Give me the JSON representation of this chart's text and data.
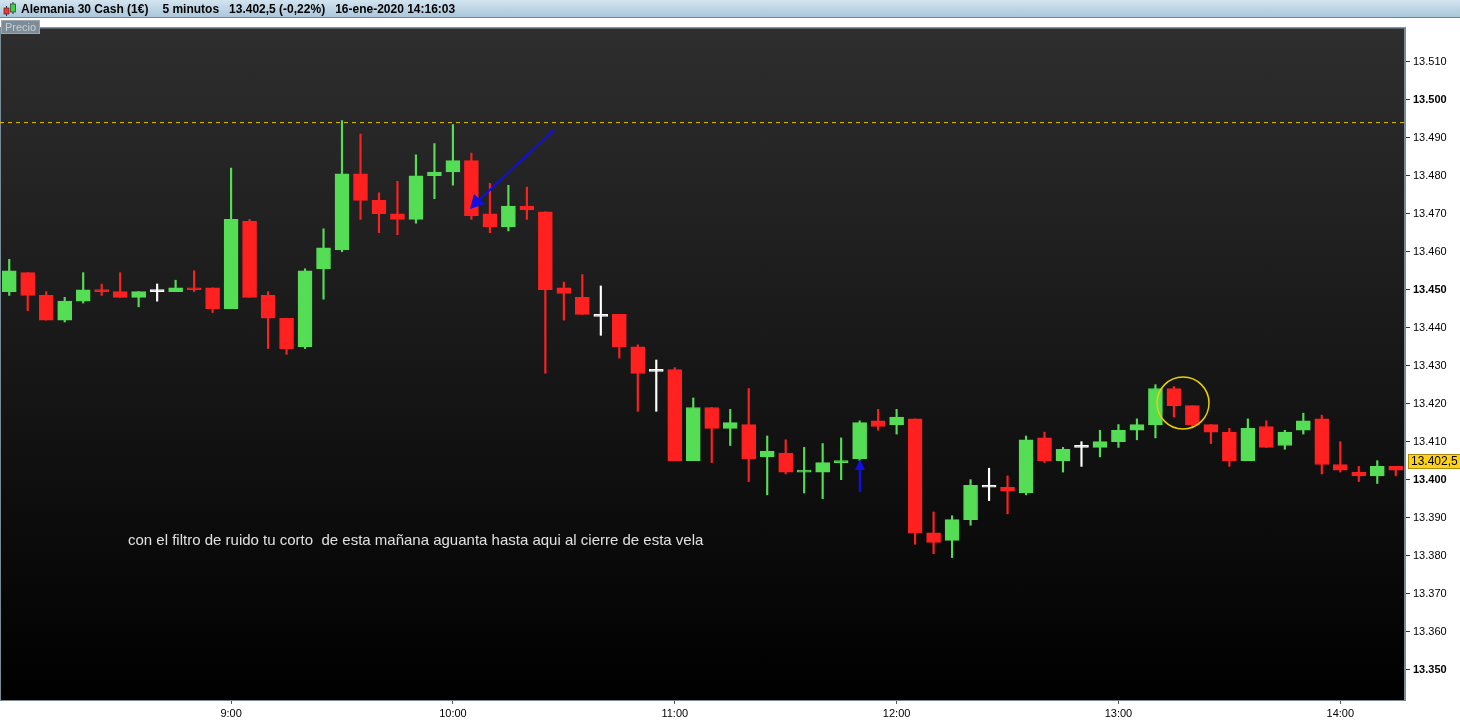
{
  "chart_data": {
    "type": "candlestick",
    "title": "Alemania 30 Cash (1€)",
    "subtitle": "5 minutos   13.402,5 (-0,22%)   16-ene-2020 14:16:03",
    "categories": [
      null,
      null,
      null,
      null,
      null,
      null,
      null,
      null,
      null,
      null,
      null,
      null,
      "9:00",
      null,
      null,
      null,
      null,
      null,
      null,
      null,
      null,
      null,
      null,
      null,
      "10:00",
      null,
      null,
      null,
      null,
      null,
      null,
      null,
      null,
      null,
      null,
      null,
      "11:00",
      null,
      null,
      null,
      null,
      null,
      null,
      null,
      null,
      null,
      null,
      null,
      "12:00",
      null,
      null,
      null,
      null,
      null,
      null,
      null,
      null,
      null,
      null,
      null,
      "13:00",
      null,
      null,
      null,
      null,
      null,
      null,
      null,
      null,
      null,
      null,
      null,
      "14:00",
      null,
      null,
      null
    ],
    "ohlc": [
      [
        13449.5,
        13458,
        13448.5,
        13455
      ],
      [
        13454.5,
        13454.5,
        13444.5,
        13448.5
      ],
      [
        13448.5,
        13449.5,
        13442,
        13442
      ],
      [
        13442,
        13448,
        13441.5,
        13447
      ],
      [
        13447,
        13454.5,
        13446.5,
        13450
      ],
      [
        13450,
        13451.5,
        13448.5,
        13449.5
      ],
      [
        13449.5,
        13454.5,
        13448,
        13448
      ],
      [
        13448,
        13449.5,
        13445.5,
        13449.5
      ],
      [
        13449.5,
        13451.5,
        13447,
        13449.5
      ],
      [
        13449.5,
        13452.5,
        13449.5,
        13450.5
      ],
      [
        13450.5,
        13455,
        13449.5,
        13450
      ],
      [
        13450.5,
        13450.5,
        13444,
        13445
      ],
      [
        13445,
        13482,
        13445,
        13468.5
      ],
      [
        13468,
        13468.5,
        13448,
        13448
      ],
      [
        13448.5,
        13449.5,
        13434.5,
        13442.5
      ],
      [
        13442.5,
        13442.5,
        13433,
        13434.5
      ],
      [
        13435,
        13455.5,
        13434.5,
        13455
      ],
      [
        13455.5,
        13466,
        13447.5,
        13461
      ],
      [
        13460.5,
        13494.5,
        13460,
        13480.5
      ],
      [
        13480.5,
        13491,
        13468.5,
        13473.5
      ],
      [
        13473.5,
        13475.5,
        13465,
        13470
      ],
      [
        13470,
        13478.5,
        13464.5,
        13468.5
      ],
      [
        13468.5,
        13485.5,
        13467.5,
        13480
      ],
      [
        13480,
        13488.5,
        13474,
        13481
      ],
      [
        13481,
        13493.5,
        13477.5,
        13484
      ],
      [
        13484,
        13486,
        13468.5,
        13469.5
      ],
      [
        13470,
        13478,
        13465,
        13466.5
      ],
      [
        13466.5,
        13477.5,
        13465.5,
        13472
      ],
      [
        13472,
        13477,
        13468.5,
        13471
      ],
      [
        13470.5,
        13470.5,
        13428,
        13450
      ],
      [
        13450.5,
        13452,
        13442,
        13449
      ],
      [
        13448,
        13454,
        13443.5,
        13443.5
      ],
      [
        13443,
        13451,
        13438,
        13443
      ],
      [
        13443.5,
        13443.5,
        13432,
        13435
      ],
      [
        13435,
        13435.5,
        13418,
        13428
      ],
      [
        13428.5,
        13431.5,
        13418,
        13428.5
      ],
      [
        13429,
        13429.5,
        13405,
        13405
      ],
      [
        13405,
        13421.5,
        13405,
        13419
      ],
      [
        13419,
        13419,
        13404.5,
        13413.5
      ],
      [
        13413.5,
        13418.5,
        13409,
        13415
      ],
      [
        13414.5,
        13424,
        13399.5,
        13405.5
      ],
      [
        13406,
        13411.5,
        13396,
        13407.5
      ],
      [
        13407,
        13410.5,
        13401.5,
        13402
      ],
      [
        13402,
        13408.5,
        13396.5,
        13402.5
      ],
      [
        13402,
        13409.5,
        13395,
        13404.5
      ],
      [
        13404.5,
        13411,
        13400,
        13405
      ],
      [
        13405.5,
        13415.5,
        13405,
        13415
      ],
      [
        13415.5,
        13418.5,
        13413,
        13414
      ],
      [
        13414.5,
        13418.5,
        13412,
        13416.5
      ],
      [
        13416,
        13416,
        13383,
        13386
      ],
      [
        13386,
        13391.5,
        13380.5,
        13383.5
      ],
      [
        13384,
        13390.5,
        13379.5,
        13389.5
      ],
      [
        13389.5,
        13400,
        13388,
        13398.5
      ],
      [
        13398,
        13403,
        13394.5,
        13398
      ],
      [
        13398,
        13401,
        13391,
        13397
      ],
      [
        13396.5,
        13411.5,
        13396,
        13410.5
      ],
      [
        13411,
        13412.5,
        13404.5,
        13405
      ],
      [
        13405,
        13408.5,
        13402,
        13408
      ],
      [
        13408.5,
        13410,
        13403.5,
        13408.5
      ],
      [
        13408.5,
        13413,
        13406,
        13410
      ],
      [
        13410,
        13414.5,
        13408.5,
        13413
      ],
      [
        13413,
        13416,
        13410.5,
        13414.5
      ],
      [
        13414.5,
        13425,
        13411,
        13424
      ],
      [
        13424,
        13424.5,
        13416.5,
        13419.5
      ],
      [
        13419.5,
        13419.5,
        13414,
        13414.5
      ],
      [
        13414.5,
        13414.5,
        13409.5,
        13412.5
      ],
      [
        13412.5,
        13413.5,
        13403.5,
        13405
      ],
      [
        13405,
        13416,
        13405,
        13413.5
      ],
      [
        13414,
        13415.5,
        13408.5,
        13408.5
      ],
      [
        13409,
        13413,
        13408,
        13412.5
      ],
      [
        13413,
        13417.5,
        13412,
        13415.5
      ],
      [
        13416,
        13417,
        13401.5,
        13404
      ],
      [
        13404,
        13410,
        13402,
        13402.5
      ],
      [
        13402,
        13403.5,
        13399.5,
        13401
      ],
      [
        13401,
        13405,
        13399,
        13403.5
      ],
      [
        13403.5,
        13403.5,
        13401,
        13402.5
      ]
    ],
    "colors": [
      "#55dd55",
      "#ff2020",
      "#ff2020",
      "#55dd55",
      "#55dd55",
      "#ff2020",
      "#ff2020",
      "#55dd55",
      "#ffffff",
      "#55dd55",
      "#ff2020",
      "#ff2020",
      "#55dd55",
      "#ff2020",
      "#ff2020",
      "#ff2020",
      "#55dd55",
      "#55dd55",
      "#55dd55",
      "#ff2020",
      "#ff2020",
      "#ff2020",
      "#55dd55",
      "#55dd55",
      "#55dd55",
      "#ff2020",
      "#ff2020",
      "#55dd55",
      "#ff2020",
      "#ff2020",
      "#ff2020",
      "#ff2020",
      "#ffffff",
      "#ff2020",
      "#ff2020",
      "#ffffff",
      "#ff2020",
      "#55dd55",
      "#ff2020",
      "#55dd55",
      "#ff2020",
      "#55dd55",
      "#ff2020",
      "#55dd55",
      "#55dd55",
      "#55dd55",
      "#55dd55",
      "#ff2020",
      "#55dd55",
      "#ff2020",
      "#ff2020",
      "#55dd55",
      "#55dd55",
      "#ffffff",
      "#ff2020",
      "#55dd55",
      "#ff2020",
      "#55dd55",
      "#ffffff",
      "#55dd55",
      "#55dd55",
      "#55dd55",
      "#55dd55",
      "#ff2020",
      "#ff2020",
      "#ff2020",
      "#ff2020",
      "#55dd55",
      "#ff2020",
      "#55dd55",
      "#55dd55",
      "#ff2020",
      "#ff2020",
      "#ff2020",
      "#55dd55",
      "#ff2020"
    ],
    "ylim": [
      13342,
      13519
    ],
    "yticks": [
      {
        "value": 13350,
        "label": "13.350"
      },
      {
        "value": 13360,
        "label": "13.360"
      },
      {
        "value": 13370,
        "label": "13.370"
      },
      {
        "value": 13380,
        "label": "13.380"
      },
      {
        "value": 13390,
        "label": "13.390"
      },
      {
        "value": 13400,
        "label": "13.400"
      },
      {
        "value": 13410,
        "label": "13.410"
      },
      {
        "value": 13420,
        "label": "13.420"
      },
      {
        "value": 13430,
        "label": "13.430"
      },
      {
        "value": 13440,
        "label": "13.440"
      },
      {
        "value": 13450,
        "label": "13.450"
      },
      {
        "value": 13460,
        "label": "13.460"
      },
      {
        "value": 13470,
        "label": "13.470"
      },
      {
        "value": 13480,
        "label": "13.480"
      },
      {
        "value": 13490,
        "label": "13.490"
      },
      {
        "value": 13500,
        "label": "13.500"
      },
      {
        "value": 13510,
        "label": "13.510"
      }
    ],
    "ref_lines": [
      {
        "axis": "y",
        "value": 13494,
        "color": "#e0c000",
        "line_style": "dashed"
      }
    ],
    "annotations": [
      "Precio",
      "13.402,5",
      "con el filtro de ruido tu corto  de esta mañana aguanta hasta aqui al cierre de esta vela"
    ],
    "grid": false,
    "legend": false
  }
}
